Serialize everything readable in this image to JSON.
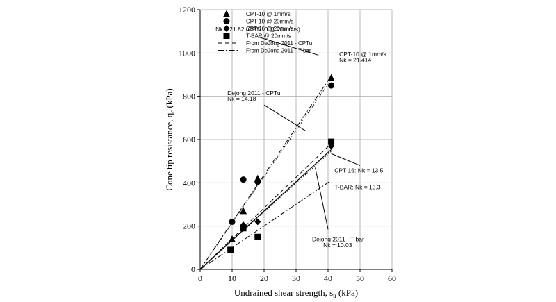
{
  "chart_data": {
    "type": "scatter",
    "xlabel": "Undrained shear strength, s",
    "xlabel_sub": "u",
    "xlabel_unit": " (kPa)",
    "ylabel": "Cone tip resistance, q",
    "ylabel_sub": "c",
    "ylabel_unit": " (kPa)",
    "xlim": [
      0,
      60
    ],
    "ylim": [
      0,
      1200
    ],
    "xticks": [
      0,
      10,
      20,
      30,
      40,
      50,
      60
    ],
    "yticks": [
      0,
      200,
      400,
      600,
      800,
      1000,
      1200
    ],
    "grid": true,
    "legend_position": "top-left",
    "series": [
      {
        "name": "CPT-10 @ 1mm/s",
        "marker": "triangle",
        "color": "#000000",
        "points": [
          [
            10,
            140
          ],
          [
            13.5,
            270
          ],
          [
            18,
            420
          ],
          [
            41,
            885
          ]
        ]
      },
      {
        "name": "CPT-10 @ 20mm/s",
        "marker": "circle",
        "color": "#000000",
        "points": [
          [
            10,
            220
          ],
          [
            13.5,
            415
          ],
          [
            18,
            405
          ],
          [
            41,
            850
          ]
        ]
      },
      {
        "name": "CPT-16 @ 20mm/s",
        "marker": "diamond",
        "color": "#000000",
        "points": [
          [
            13.5,
            205
          ],
          [
            18,
            220
          ],
          [
            41,
            570
          ]
        ]
      },
      {
        "name": "T-BAR @ 20mm/s",
        "marker": "square",
        "color": "#000000",
        "points": [
          [
            9.5,
            90
          ],
          [
            13.5,
            190
          ],
          [
            18,
            150
          ],
          [
            41,
            590
          ]
        ]
      }
    ],
    "reference_lines": [
      {
        "name": "From DeJong 2011 - CPTu",
        "style": "dashed",
        "slope": 14.18,
        "x_range": [
          0,
          41
        ]
      },
      {
        "name": "From DeJong 2011 - T-bar",
        "style": "dashdot",
        "slope": 10.03,
        "x_range": [
          0,
          41
        ]
      }
    ],
    "fit_lines": [
      {
        "label": "CPT-10 @ 1mm/s",
        "style": "dotted",
        "slope": 21.414,
        "x_range": [
          0,
          41
        ]
      },
      {
        "label": "CPT-10 @ 20mm/s",
        "style": "dashdot",
        "slope": 21.82,
        "x_range": [
          0,
          41
        ]
      },
      {
        "label": "CPT-16",
        "style": "solid",
        "slope": 13.5,
        "x_range": [
          0,
          41
        ]
      },
      {
        "label": "T-BAR",
        "style": "dotted",
        "slope": 13.3,
        "x_range": [
          0,
          41
        ]
      }
    ],
    "annotations": [
      {
        "text": "Nk = 21.82 (CPT-10 @ 20mm/s)",
        "x": 4.8,
        "y": 1100,
        "leader": [
          [
            18,
            1075
          ],
          [
            37,
            990
          ]
        ]
      },
      {
        "text": "CPT-10 @ 1mm/s",
        "x": 43.5,
        "y": 985
      },
      {
        "text": "Nk = 21.414",
        "x": 43.5,
        "y": 958
      },
      {
        "text": "Dejong 2011 - CPTu",
        "x": 8.5,
        "y": 805
      },
      {
        "text": "Nk = 14.18",
        "x": 8.5,
        "y": 780,
        "leader": [
          [
            20,
            760
          ],
          [
            33,
            640
          ]
        ]
      },
      {
        "text": "CPT-16: Nk = 13.5",
        "x": 42,
        "y": 447,
        "leader": [
          [
            41,
            535
          ],
          [
            50,
            480
          ]
        ]
      },
      {
        "text": "T-BAR: Nk = 13.3",
        "x": 42,
        "y": 370
      },
      {
        "text": "Dejong 2011 - T-bar",
        "x": 35,
        "y": 130
      },
      {
        "text": "Nk = 10.03",
        "x": 38.5,
        "y": 103,
        "leader": [
          [
            36,
            470
          ],
          [
            40,
            185
          ]
        ]
      }
    ]
  }
}
